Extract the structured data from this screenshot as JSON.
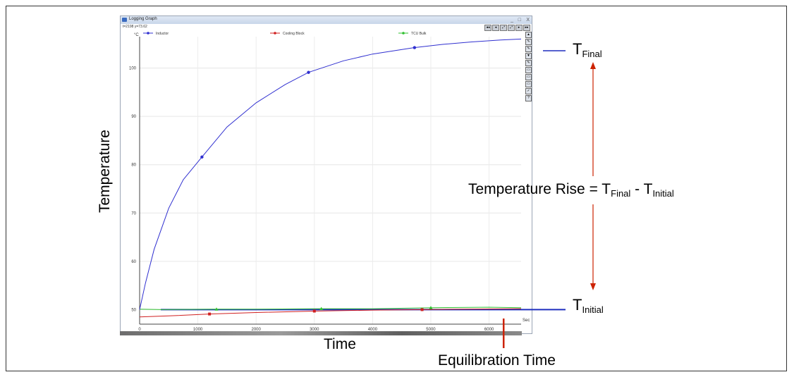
{
  "window": {
    "title": "Logging Graph",
    "coords": "t=2198  y=73.62",
    "min_label": "_",
    "max_label": "□",
    "close_label": "X",
    "nav_buttons": [
      "◂◂",
      "◂",
      "⤢",
      "⤢",
      "▸",
      "▸▸"
    ],
    "side_tools": [
      "▲",
      "✎",
      "✎",
      "▼",
      "✎",
      "▭",
      "▭",
      "▭",
      "✓",
      "?"
    ]
  },
  "annotations": {
    "t_final_main": "T",
    "t_final_sub": "Final",
    "t_initial_main": "T",
    "t_initial_sub": "Initial",
    "rise_prefix": "Temperature Rise = T",
    "rise_sub1": "Final",
    "rise_mid": " -  T",
    "rise_sub2": "Initial",
    "equil_label": "Equilibration Time",
    "arrow_color": "#cc2200",
    "tfinal_line_color": "#1f2fbf",
    "tinitial_line_color": "#1f2fbf"
  },
  "chart_data": {
    "type": "line",
    "unit_label": "°C",
    "x_unit_label": "Sec",
    "xlabel": "Time",
    "ylabel": "Temperature",
    "xlim": [
      0,
      6550
    ],
    "ylim": [
      47,
      106.5
    ],
    "xticks": [
      0,
      1000,
      2000,
      3000,
      4000,
      5000,
      6000
    ],
    "yticks": [
      50,
      60,
      70,
      80,
      90,
      100
    ],
    "grid": true,
    "legend_position": "top",
    "series": [
      {
        "name": "Inductor",
        "color": "#3030d0",
        "x": [
          0,
          100,
          250,
          500,
          750,
          1050,
          1500,
          2000,
          2500,
          2900,
          3500,
          4000,
          4700,
          5200,
          5700,
          6200,
          6550
        ],
        "y": [
          50.0,
          55.5,
          62.5,
          71.0,
          76.9,
          81.3,
          87.8,
          92.8,
          96.6,
          99.1,
          101.5,
          102.9,
          104.2,
          104.9,
          105.4,
          105.8,
          106.0
        ],
        "markers_x": [
          1070,
          2900,
          4720
        ]
      },
      {
        "name": "Cooling Block",
        "color": "#d02020",
        "x": [
          0,
          500,
          1200,
          2000,
          3000,
          4000,
          4850,
          5500,
          6550
        ],
        "y": [
          48.5,
          48.7,
          49.1,
          49.4,
          49.7,
          49.9,
          50.0,
          50.1,
          50.2
        ],
        "markers_x": [
          1200,
          3000,
          4850
        ]
      },
      {
        "name": "TCU Bulk",
        "color": "#30c030",
        "x": [
          0,
          400,
          1300,
          2000,
          3100,
          4000,
          5000,
          6000,
          6550
        ],
        "y": [
          50.1,
          50.0,
          50.1,
          50.1,
          50.2,
          50.2,
          50.4,
          50.5,
          50.4
        ],
        "markers_x": [
          1320,
          3120,
          5000
        ]
      }
    ],
    "reference_lines": [
      {
        "label": "T_Initial",
        "y": 50.0
      }
    ],
    "annotation_x": {
      "label": "Equilibration Time",
      "x": 6250
    }
  }
}
